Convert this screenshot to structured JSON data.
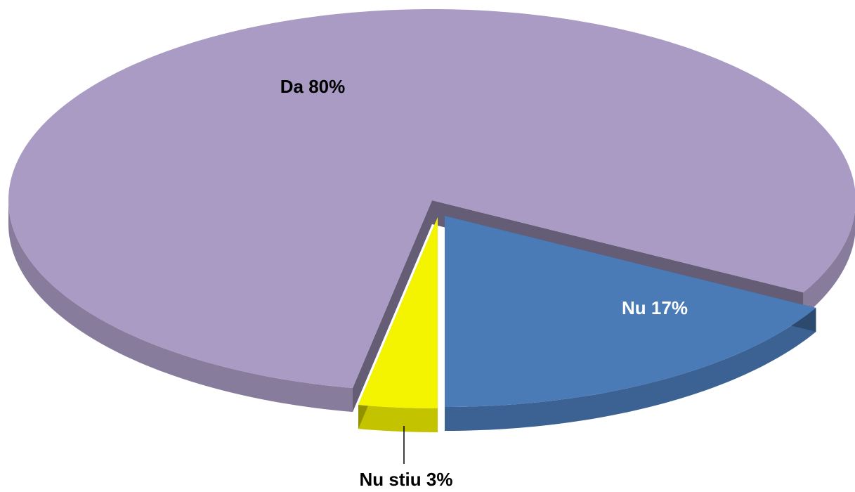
{
  "chart_data": {
    "type": "pie",
    "categories": [
      "Da",
      "Nu",
      "Nu stiu"
    ],
    "values": [
      80,
      17,
      3
    ],
    "value_labels": [
      "Da 80%",
      "Nu 17%",
      "Nu stiu 3%"
    ],
    "colors": [
      "#a99bc3",
      "#4a7bb7",
      "#f4f400"
    ]
  }
}
